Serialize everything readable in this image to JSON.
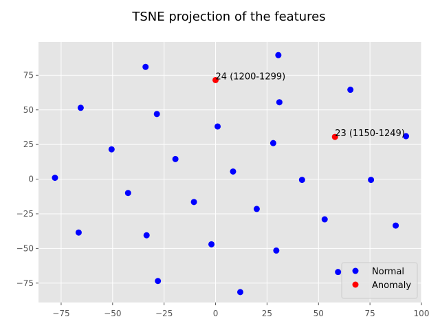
{
  "chart_data": {
    "type": "scatter",
    "title": "TSNE projection of the features",
    "xlabel": "",
    "ylabel": "",
    "xlim": [
      -86,
      100
    ],
    "ylim": [
      -89,
      99
    ],
    "xticks": [
      -75,
      -50,
      -25,
      0,
      25,
      50,
      75,
      100
    ],
    "yticks": [
      -75,
      -50,
      -25,
      0,
      25,
      50,
      75
    ],
    "grid": true,
    "legend_position": "bottom-right",
    "series": [
      {
        "name": "Normal",
        "color": "#0000ff",
        "points": [
          {
            "x": 30.5,
            "y": 89.5
          },
          {
            "x": -34,
            "y": 81
          },
          {
            "x": 65.5,
            "y": 64.5
          },
          {
            "x": -65.5,
            "y": 51.5
          },
          {
            "x": 31,
            "y": 55.5
          },
          {
            "x": -28.5,
            "y": 47
          },
          {
            "x": 1,
            "y": 38
          },
          {
            "x": 92.5,
            "y": 31
          },
          {
            "x": 28,
            "y": 26
          },
          {
            "x": -50.5,
            "y": 21.5
          },
          {
            "x": -19.5,
            "y": 14.5
          },
          {
            "x": 8.5,
            "y": 5.5
          },
          {
            "x": -78,
            "y": 1
          },
          {
            "x": 42,
            "y": -0.5
          },
          {
            "x": 75.5,
            "y": -0.5
          },
          {
            "x": -42.5,
            "y": -10
          },
          {
            "x": -10.5,
            "y": -16.5
          },
          {
            "x": 20,
            "y": -21.5
          },
          {
            "x": 53,
            "y": -29
          },
          {
            "x": 87.5,
            "y": -33.5
          },
          {
            "x": -66.5,
            "y": -38.5
          },
          {
            "x": -33.5,
            "y": -40.5
          },
          {
            "x": -2,
            "y": -47
          },
          {
            "x": 29.5,
            "y": -51.5
          },
          {
            "x": 59.5,
            "y": -67
          },
          {
            "x": -28,
            "y": -73.5
          },
          {
            "x": 12,
            "y": -81.5
          }
        ]
      },
      {
        "name": "Anomaly",
        "color": "#ff0000",
        "points": [
          {
            "x": 0,
            "y": 71.5,
            "label": "24 (1200-1299)"
          },
          {
            "x": 58,
            "y": 30.5,
            "label": "23 (1150-1249)"
          }
        ]
      }
    ]
  },
  "style": {
    "plot_background": "#e5e5e5",
    "grid_color": "#ffffff"
  }
}
